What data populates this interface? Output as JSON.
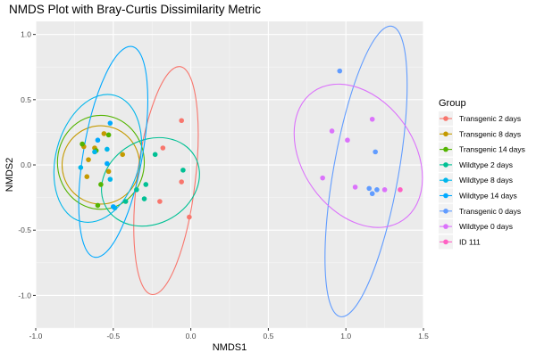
{
  "chart_data": {
    "type": "scatter",
    "title": "NMDS Plot with Bray-Curtis Dissimilarity Metric",
    "xlabel": "NMDS1",
    "ylabel": "NMDS2",
    "xlim": [
      -1.0,
      1.5
    ],
    "ylim": [
      -1.25,
      1.1
    ],
    "x_ticks": [
      -1.0,
      -0.5,
      0.0,
      0.5,
      1.0,
      1.5
    ],
    "x_tick_labels": [
      "-1.0",
      "-0.5",
      "0.0",
      "0.5",
      "1.0",
      "1.5"
    ],
    "y_ticks": [
      -1.0,
      -0.5,
      0.0,
      0.5,
      1.0
    ],
    "y_tick_labels": [
      "-1.0",
      "-0.5",
      "0.0",
      "0.5",
      "1.0"
    ],
    "grid": true,
    "legend": {
      "title": "Group",
      "placement": "right"
    },
    "series": [
      {
        "name": "Transgenic 2 days",
        "color": "#F8766D",
        "points": [
          [
            -0.06,
            0.34
          ],
          [
            -0.18,
            0.13
          ],
          [
            -0.06,
            -0.13
          ],
          [
            -0.01,
            -0.4
          ],
          [
            -0.2,
            -0.28
          ]
        ],
        "ellipse": {
          "cx": -0.16,
          "cy": -0.12,
          "rx": 0.188,
          "ry": 0.88,
          "angle": 7
        }
      },
      {
        "name": "Transgenic 8 days",
        "color": "#C49A00",
        "points": [
          [
            -0.56,
            0.24
          ],
          [
            -0.62,
            0.13
          ],
          [
            -0.69,
            0.14
          ],
          [
            -0.66,
            0.04
          ],
          [
            -0.67,
            -0.09
          ],
          [
            -0.53,
            -0.05
          ],
          [
            -0.44,
            0.08
          ]
        ],
        "ellipse": {
          "cx": -0.58,
          "cy": 0.0,
          "rx": 0.25,
          "ry": 0.3,
          "angle": 5
        }
      },
      {
        "name": "Transgenic 14 days",
        "color": "#53B400",
        "points": [
          [
            -0.7,
            0.16
          ],
          [
            -0.61,
            0.11
          ],
          [
            -0.53,
            0.23
          ],
          [
            -0.58,
            -0.15
          ],
          [
            -0.6,
            -0.31
          ]
        ],
        "ellipse": {
          "cx": -0.58,
          "cy": 0.02,
          "rx": 0.28,
          "ry": 0.36,
          "angle": 0
        }
      },
      {
        "name": "Wildtype 2 days",
        "color": "#00C094",
        "points": [
          [
            -0.35,
            -0.19
          ],
          [
            -0.29,
            -0.15
          ],
          [
            -0.3,
            -0.26
          ],
          [
            -0.23,
            0.08
          ],
          [
            -0.05,
            -0.04
          ],
          [
            -0.42,
            -0.28
          ]
        ],
        "ellipse": {
          "cx": -0.26,
          "cy": -0.13,
          "rx": 0.33,
          "ry": 0.32,
          "angle": -30
        }
      },
      {
        "name": "Wildtype 8 days",
        "color": "#00B6EB",
        "points": [
          [
            -0.71,
            -0.02
          ],
          [
            -0.62,
            0.1
          ],
          [
            -0.54,
            0.12
          ],
          [
            -0.52,
            -0.11
          ],
          [
            -0.49,
            -0.33
          ]
        ],
        "ellipse": {
          "cx": -0.6,
          "cy": 0.05,
          "rx": 0.27,
          "ry": 0.5,
          "angle": 15
        }
      },
      {
        "name": "Wildtype 14 days",
        "color": "#00A9FF",
        "points": [
          [
            -0.52,
            0.32
          ],
          [
            -0.6,
            0.19
          ],
          [
            -0.54,
            0.01
          ],
          [
            -0.5,
            -0.32
          ]
        ],
        "ellipse": {
          "cx": -0.5,
          "cy": 0.1,
          "rx": 0.19,
          "ry": 0.82,
          "angle": 10
        }
      },
      {
        "name": "Transgenic 0 days",
        "color": "#619CFF",
        "points": [
          [
            0.96,
            0.72
          ],
          [
            1.19,
            0.1
          ],
          [
            1.15,
            -0.18
          ],
          [
            1.17,
            -0.22
          ],
          [
            1.2,
            -0.19
          ]
        ],
        "ellipse": {
          "cx": 1.13,
          "cy": -0.05,
          "rx": 0.21,
          "ry": 1.13,
          "angle": 10
        }
      },
      {
        "name": "Wildtype 0 days",
        "color": "#DB72FB",
        "points": [
          [
            0.85,
            -0.1
          ],
          [
            0.91,
            0.26
          ],
          [
            1.01,
            0.19
          ],
          [
            1.17,
            0.35
          ],
          [
            1.06,
            -0.17
          ],
          [
            1.25,
            -0.19
          ]
        ],
        "ellipse": {
          "cx": 1.08,
          "cy": 0.07,
          "rx": 0.36,
          "ry": 0.6,
          "angle": -35
        }
      },
      {
        "name": "ID 111",
        "color": "#FF61C3",
        "points": [
          [
            1.35,
            -0.19
          ]
        ],
        "ellipse": null
      }
    ]
  }
}
